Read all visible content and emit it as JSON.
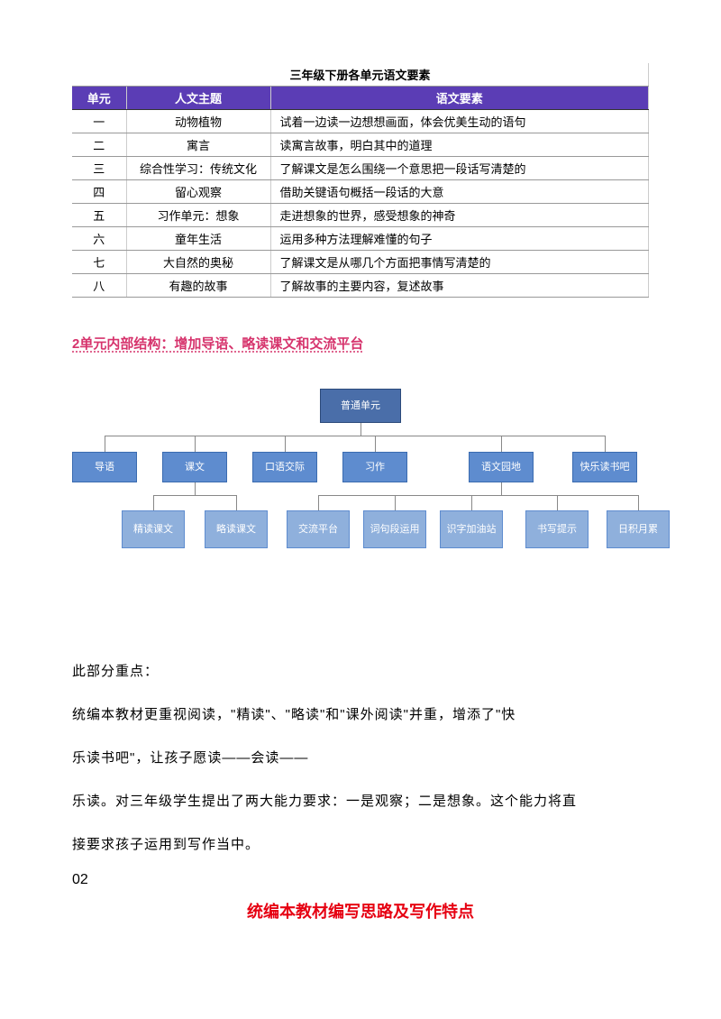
{
  "table": {
    "title": "三年级下册各单元语文要素",
    "headers": [
      "单元",
      "人文主题",
      "语文要素"
    ],
    "rows": [
      [
        "一",
        "动物植物",
        "试着一边读一边想想画面，体会优美生动的语句"
      ],
      [
        "二",
        "寓言",
        "读寓言故事，明白其中的道理"
      ],
      [
        "三",
        "综合性学习：传统文化",
        "了解课文是怎么围绕一个意思把一段话写清楚的"
      ],
      [
        "四",
        "留心观察",
        "借助关键语句概括一段话的大意"
      ],
      [
        "五",
        "习作单元：想象",
        "走进想象的世界，感受想象的神奇"
      ],
      [
        "六",
        "童年生活",
        "运用多种方法理解难懂的句子"
      ],
      [
        "七",
        "大自然的奥秘",
        "了解课文是从哪几个方面把事情写清楚的"
      ],
      [
        "八",
        "有趣的故事",
        "了解故事的主要内容，复述故事"
      ]
    ],
    "header_bg": "#5b3db5",
    "header_fg": "#ffffff"
  },
  "section_heading": "2单元内部结构：增加导语、略读课文和交流平台",
  "chart": {
    "root": "普通单元",
    "mids": [
      "导语",
      "课文",
      "口语交际",
      "习作",
      "语文园地",
      "快乐读书吧"
    ],
    "leaves": [
      "精读课文",
      "略读课文",
      "交流平台",
      "词句段运用",
      "识字加油站",
      "书写提示",
      "日积月累"
    ],
    "colors": {
      "root": "#4a6ea9",
      "mid": "#5e8ccf",
      "leaf": "#8fb0dc",
      "line": "#888888"
    }
  },
  "body": {
    "p1": "此部分重点：",
    "p2": "统编本教材更重视阅读，\"精读\"、\"略读\"和\"课外阅读\"并重，增添了\"快",
    "p3": "乐读书吧\"，让孩子愿读——会读——",
    "p4": "乐读。对三年级学生提出了两大能力要求：一是观察；二是想象。这个能力将直",
    "p5": "接要求孩子运用到写作当中。"
  },
  "chapter_num": "02",
  "chapter_title": "统编本教材编写思路及写作特点"
}
